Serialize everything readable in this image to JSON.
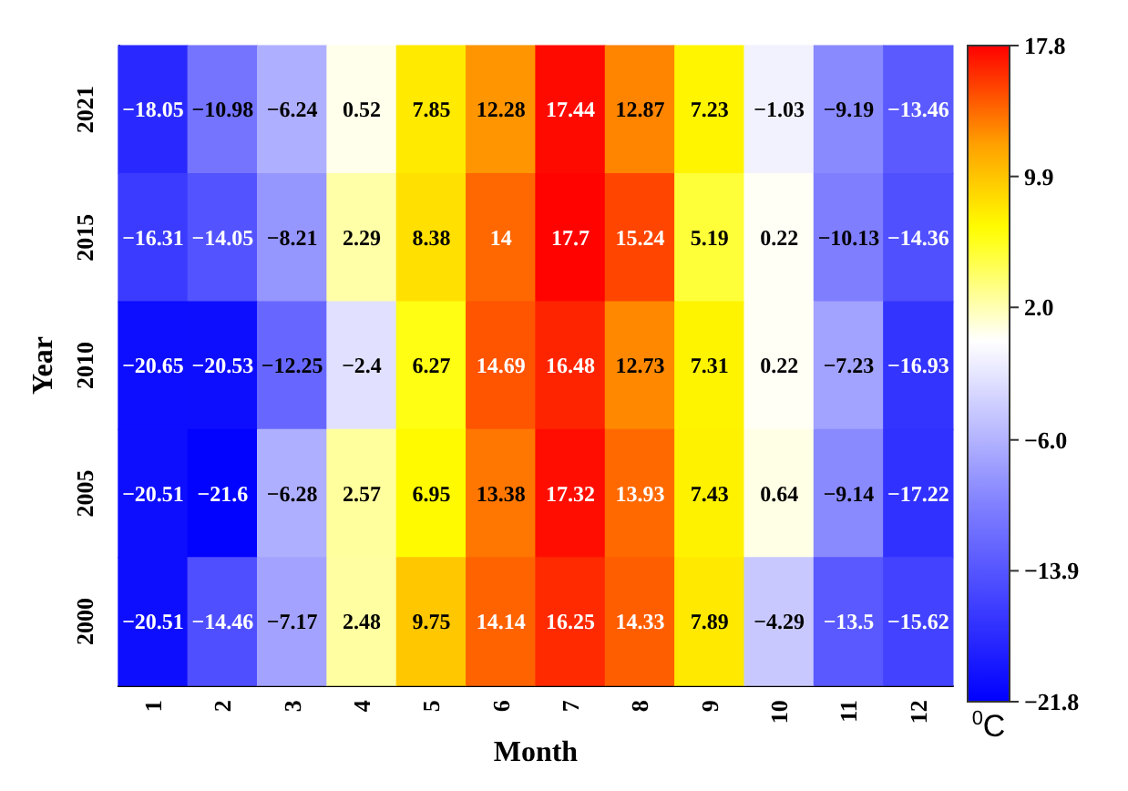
{
  "chart_data": {
    "type": "heatmap",
    "xlabel": "Month",
    "ylabel": "Year",
    "clabel": "$^{0}$C",
    "categories": [
      "1",
      "2",
      "3",
      "4",
      "5",
      "6",
      "7",
      "8",
      "9",
      "10",
      "11",
      "12"
    ],
    "y_categories": [
      "2021",
      "2015",
      "2010",
      "2005",
      "2000"
    ],
    "cells": [
      [
        -18.05,
        -10.98,
        -6.24,
        0.52,
        7.85,
        12.28,
        17.44,
        12.87,
        7.23,
        -1.03,
        -9.19,
        -13.46
      ],
      [
        -16.31,
        -14.05,
        -8.21,
        2.29,
        8.38,
        14,
        17.7,
        15.24,
        5.19,
        0.22,
        -10.13,
        -14.36
      ],
      [
        -20.65,
        -20.53,
        -12.25,
        -2.4,
        6.27,
        14.69,
        16.48,
        12.73,
        7.31,
        0.22,
        -7.23,
        -16.93
      ],
      [
        -20.51,
        -21.6,
        -6.28,
        2.57,
        6.95,
        13.38,
        17.32,
        13.93,
        7.43,
        0.64,
        -9.14,
        -17.22
      ],
      [
        -20.51,
        -14.46,
        -7.17,
        2.48,
        9.75,
        14.14,
        16.25,
        14.33,
        7.89,
        -4.29,
        -13.5,
        -15.62
      ]
    ],
    "data_labels": true,
    "clim": [
      -21.8,
      17.8
    ],
    "cticks": [
      17.8,
      9.9,
      {
        "value": 2,
        "label": "2.0"
      },
      {
        "value": -6,
        "label": "−6.0"
      },
      -13.9,
      -21.8
    ]
  }
}
